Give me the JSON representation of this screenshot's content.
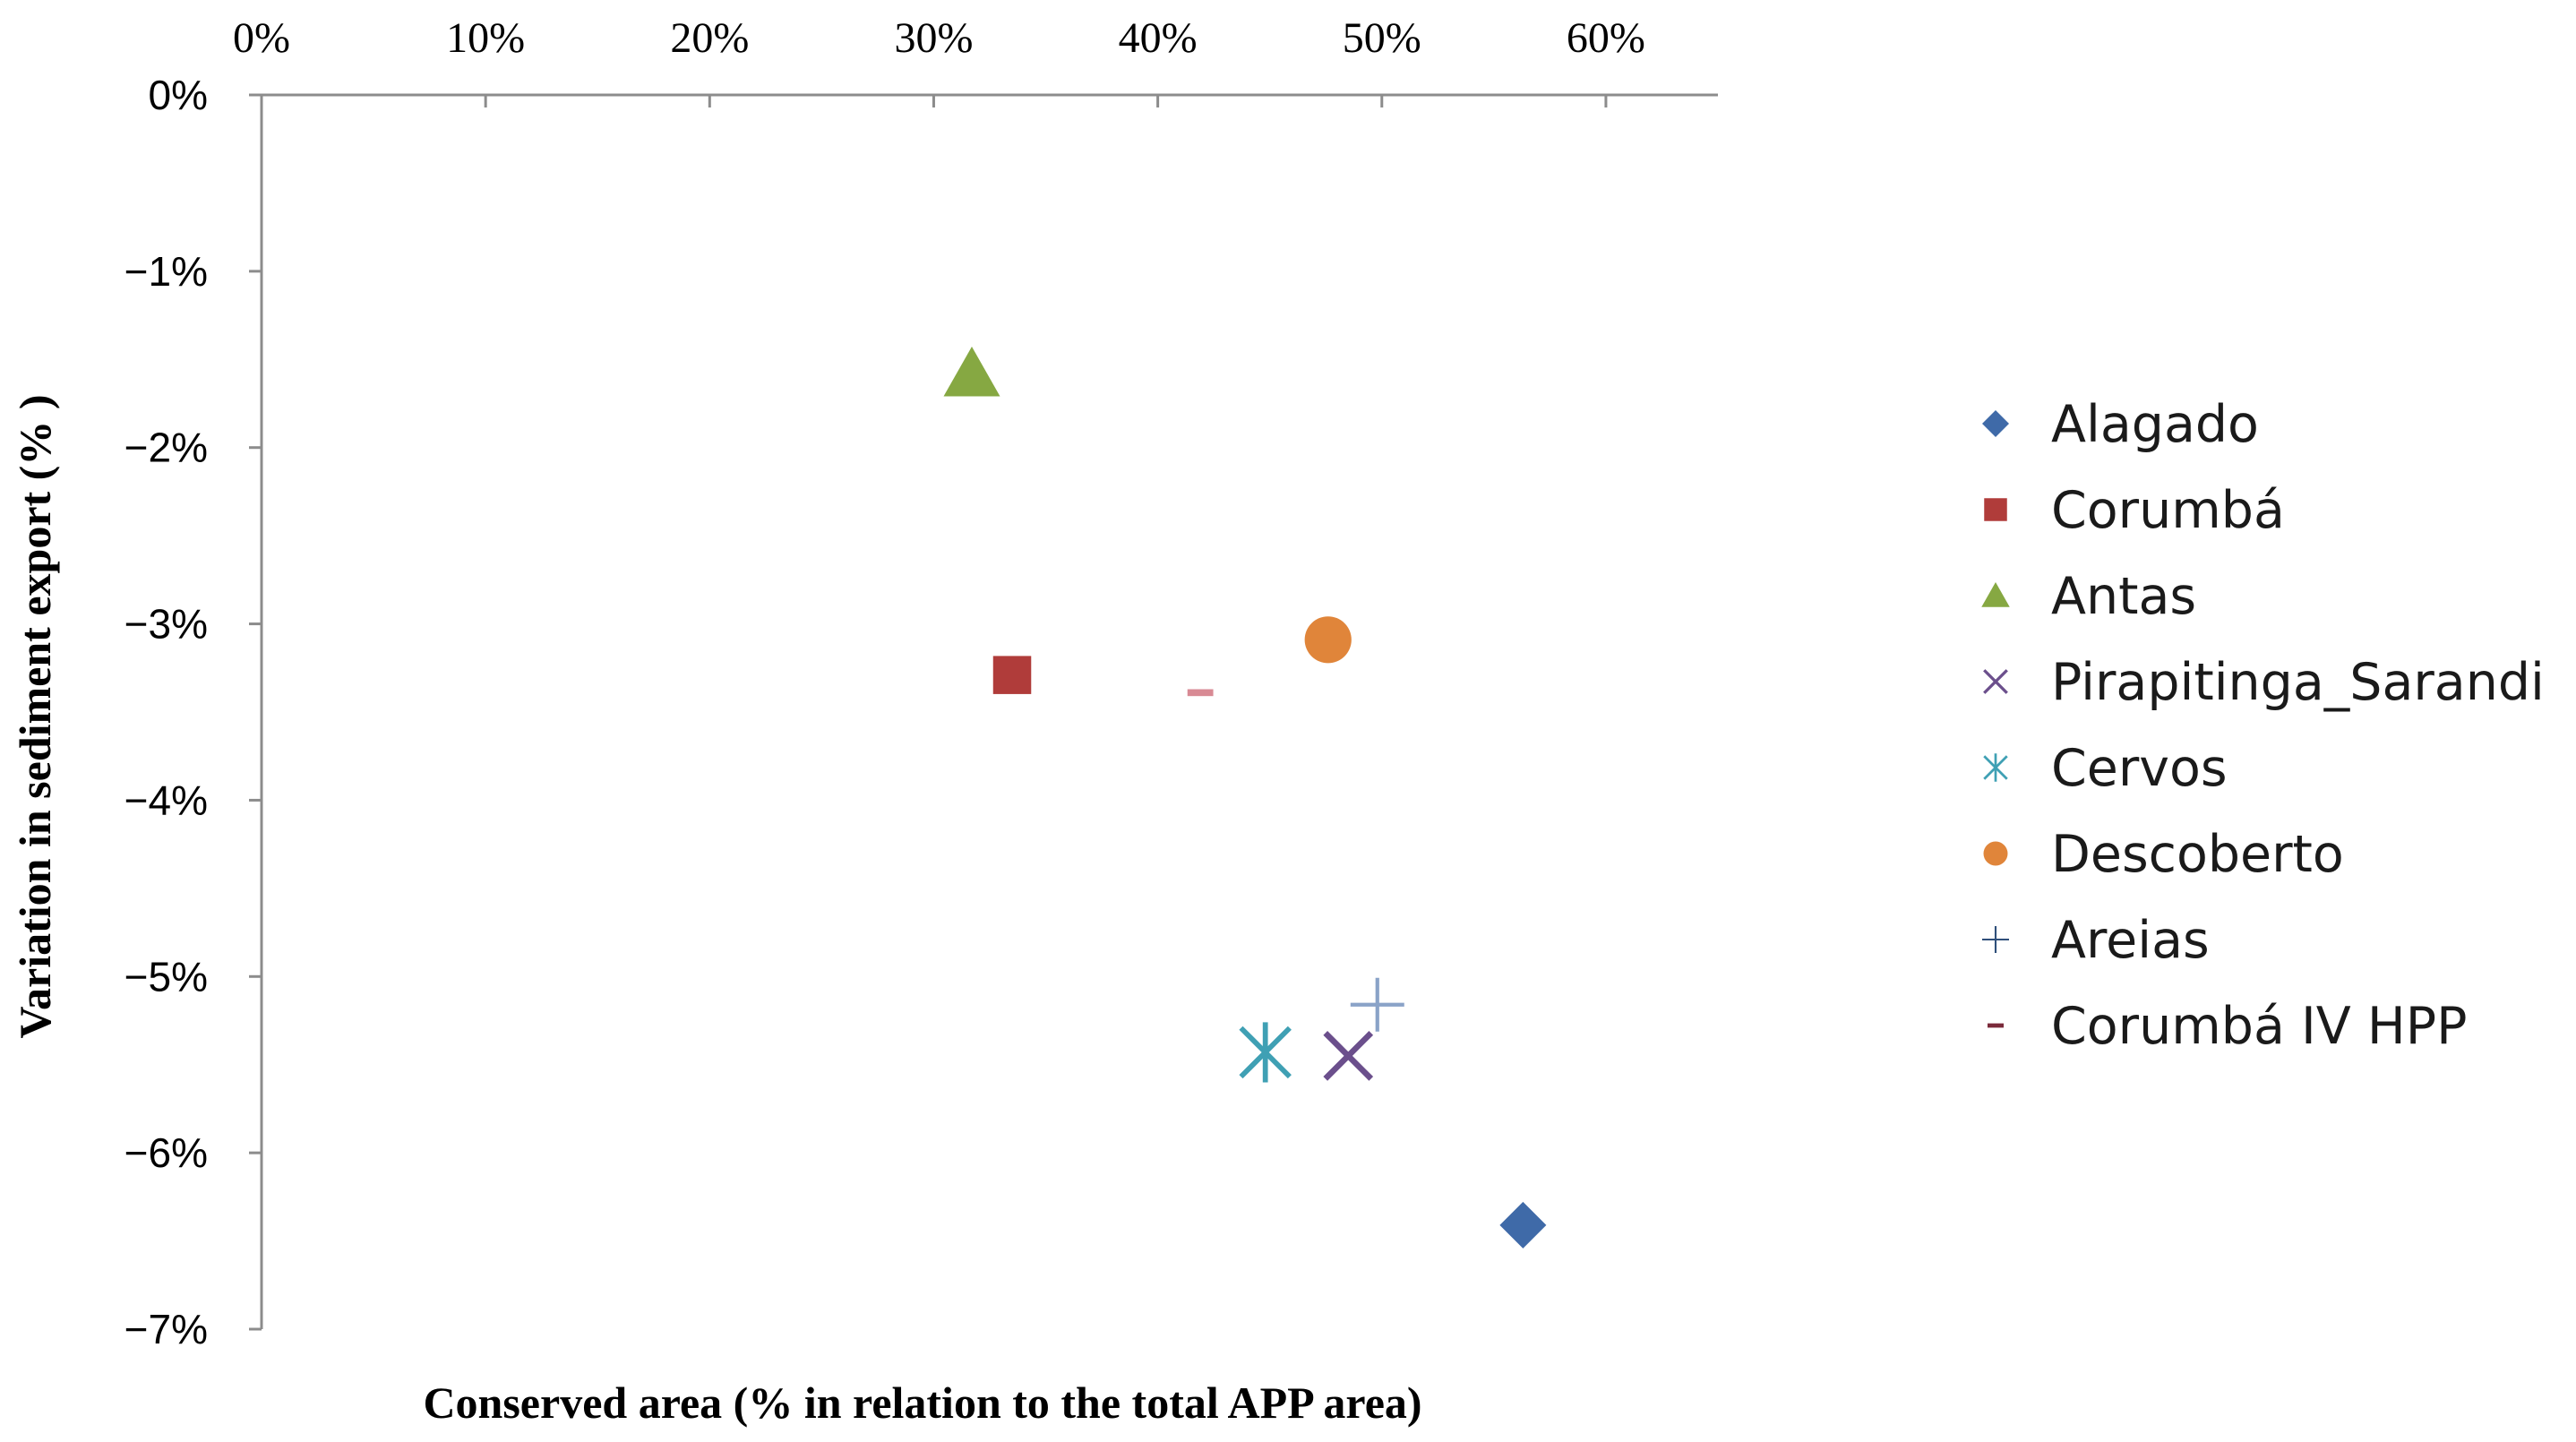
{
  "chart_data": {
    "type": "scatter",
    "xlabel": "Conserved  area (% in relation to the total  APP area)",
    "ylabel": "Variation  in sediment  export  (% )",
    "xlim": [
      0,
      0.65
    ],
    "ylim": [
      -0.07,
      0
    ],
    "x_ticks": [
      0,
      0.1,
      0.2,
      0.3,
      0.4,
      0.5,
      0.6
    ],
    "x_tick_labels": [
      "0%",
      "10%",
      "20%",
      "30%",
      "40%",
      "50%",
      "60%"
    ],
    "y_ticks": [
      0,
      -0.01,
      -0.02,
      -0.03,
      -0.04,
      -0.05,
      -0.06,
      -0.07
    ],
    "y_tick_labels": [
      "0%",
      "−1%",
      "−2%",
      "−3%",
      "−4%",
      "−5%",
      "−6%",
      "−7%"
    ],
    "x_axis_position": "top",
    "grid": false,
    "legend_position": "right",
    "series": [
      {
        "name": "Alagado",
        "marker": "diamond",
        "color": "#3f6aa8",
        "x": 0.563,
        "y": -0.0641
      },
      {
        "name": "Corumbá",
        "marker": "square",
        "color": "#b03c3a",
        "x": 0.335,
        "y": -0.0329
      },
      {
        "name": "Antas",
        "marker": "triangle",
        "color": "#86a842",
        "x": 0.317,
        "y": -0.0158
      },
      {
        "name": "Pirapitinga_Sarandi",
        "marker": "x",
        "color": "#6b4f8c",
        "x": 0.485,
        "y": -0.0545
      },
      {
        "name": "Cervos",
        "marker": "asterisk",
        "color": "#3fa0b4",
        "x": 0.448,
        "y": -0.0543
      },
      {
        "name": "Descoberto",
        "marker": "circle",
        "color": "#e0853a",
        "x": 0.476,
        "y": -0.0309
      },
      {
        "name": "Areias",
        "marker": "plus",
        "color": "#8aa3c8",
        "x": 0.498,
        "y": -0.0516
      },
      {
        "name": "Corumbá IV HPP",
        "marker": "dash",
        "color": "#d88a94",
        "x": 0.419,
        "y": -0.0339
      }
    ],
    "legend_marker_colors": {
      "Alagado": "#3f6aa8",
      "Corumbá": "#b03c3a",
      "Antas": "#86a842",
      "Pirapitinga_Sarandi": "#6b4f8c",
      "Cervos": "#3fa0b4",
      "Descoberto": "#e0853a",
      "Areias": "#2f4f7a",
      "Corumbá IV HPP": "#7a2a3a"
    }
  }
}
